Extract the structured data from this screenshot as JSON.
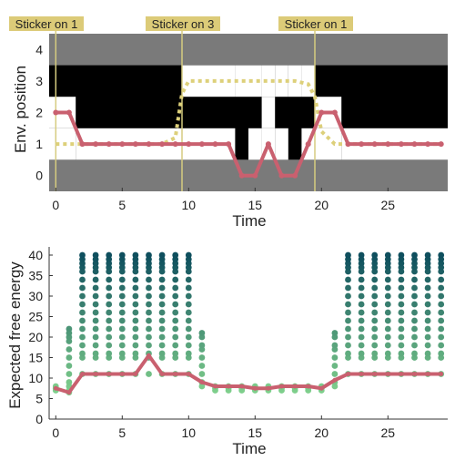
{
  "colors": {
    "env_gray": "#7a7a7a",
    "wall_black": "#000000",
    "free_white": "#ffffff",
    "trajectory": "#c9606f",
    "sticker_path": "#ddd07a",
    "sticker_line": "#d6cc80",
    "sticker_label_bg": "#dccb78",
    "efe_low": "#7fcf8c",
    "efe_high": "#0f4f5e"
  },
  "chart_data": [
    {
      "type": "line",
      "xlabel": "Time",
      "ylabel": "Env. position",
      "xlim": [
        -0.5,
        29.5
      ],
      "ylim": [
        -0.5,
        4.5
      ],
      "x_ticks": [
        0,
        5,
        10,
        15,
        20,
        25
      ],
      "y_ticks": [
        0,
        1,
        2,
        3,
        4
      ],
      "grid": false,
      "annotations": [
        {
          "text": "Sticker on 1",
          "x": 0
        },
        {
          "text": "Sticker on 3",
          "x": 9.5
        },
        {
          "text": "Sticker on 1",
          "x": 19.5
        }
      ],
      "series": [
        {
          "role": "agent-position",
          "x": [
            0,
            1,
            2,
            3,
            4,
            5,
            6,
            7,
            8,
            9,
            10,
            11,
            12,
            13,
            14,
            15,
            16,
            17,
            18,
            19,
            20,
            21,
            22,
            23,
            24,
            25,
            26,
            27,
            28,
            29
          ],
          "values": [
            2,
            2,
            1,
            1,
            1,
            1,
            1,
            1,
            1,
            1,
            1,
            1,
            1,
            1,
            0,
            0,
            1,
            0,
            0,
            1,
            2,
            2,
            1,
            1,
            1,
            1,
            1,
            1,
            1,
            1
          ]
        },
        {
          "role": "sticker-belief",
          "x": [
            0,
            1,
            2,
            3,
            4,
            5,
            6,
            7,
            8,
            9,
            9.5,
            10,
            11,
            12,
            13,
            14,
            15,
            16,
            17,
            18,
            19,
            19.5,
            20,
            21,
            22,
            23,
            24,
            25,
            26,
            27,
            28,
            29
          ],
          "values": [
            1,
            1,
            1,
            1,
            1,
            1,
            1,
            1,
            1,
            1.2,
            2.6,
            3,
            3,
            3,
            3,
            3,
            3,
            3,
            3,
            3,
            2.9,
            2.5,
            1.4,
            1,
            1,
            1,
            1,
            1,
            1,
            1,
            1,
            1
          ]
        }
      ],
      "environment_map": {
        "columns": [
          {
            "x_range": [
              -0.5,
              1.5
            ],
            "free_rows": [
              1,
              2
            ]
          },
          {
            "x_range": [
              1.5,
              9.5
            ],
            "free_rows": [
              1
            ]
          },
          {
            "x_range": [
              9.5,
              13.5
            ],
            "free_rows": [
              1,
              3
            ]
          },
          {
            "x_range": [
              13.5,
              14.5
            ],
            "free_rows": [
              0,
              3
            ]
          },
          {
            "x_range": [
              14.5,
              15.5
            ],
            "free_rows": [
              0,
              1,
              3
            ]
          },
          {
            "x_range": [
              15.5,
              16.5
            ],
            "free_rows": [
              0,
              1,
              2,
              3
            ]
          },
          {
            "x_range": [
              16.5,
              17.5
            ],
            "free_rows": [
              0,
              1,
              3
            ]
          },
          {
            "x_range": [
              17.5,
              18.5
            ],
            "free_rows": [
              0,
              3
            ]
          },
          {
            "x_range": [
              18.5,
              19.5
            ],
            "free_rows": [
              1,
              3
            ]
          },
          {
            "x_range": [
              19.5,
              21.5
            ],
            "free_rows": [
              1,
              2
            ]
          },
          {
            "x_range": [
              21.5,
              29.5
            ],
            "free_rows": [
              1
            ]
          }
        ],
        "boundary_rows": [
          0,
          4
        ]
      }
    },
    {
      "type": "scatter",
      "xlabel": "Time",
      "ylabel": "Expected free energy",
      "xlim": [
        -0.5,
        29.5
      ],
      "ylim": [
        0,
        42
      ],
      "x_ticks": [
        0,
        5,
        10,
        15,
        20,
        25
      ],
      "y_ticks": [
        0,
        5,
        10,
        15,
        20,
        25,
        30,
        35,
        40
      ],
      "grid": false,
      "columns": [
        {
          "x": 0,
          "values": [
            7,
            7.5,
            8
          ]
        },
        {
          "x": 1,
          "values": [
            6.5,
            7,
            8,
            9,
            11,
            13,
            15,
            17,
            19,
            20,
            21,
            22
          ]
        },
        {
          "x": 2,
          "values": [
            11,
            15,
            16,
            18,
            20,
            22,
            24,
            26,
            28,
            30,
            32,
            34,
            36,
            37,
            38,
            39,
            40
          ]
        },
        {
          "x": 3,
          "values": [
            11,
            15,
            16,
            18,
            20,
            22,
            24,
            26,
            28,
            30,
            32,
            34,
            36,
            37,
            38,
            39,
            40
          ]
        },
        {
          "x": 4,
          "values": [
            11,
            15,
            16,
            18,
            20,
            22,
            24,
            26,
            28,
            30,
            32,
            34,
            36,
            37,
            38,
            39,
            40
          ]
        },
        {
          "x": 5,
          "values": [
            11,
            15,
            16,
            18,
            20,
            22,
            24,
            26,
            28,
            30,
            32,
            34,
            36,
            37,
            38,
            39,
            40
          ]
        },
        {
          "x": 6,
          "values": [
            11,
            15,
            16,
            18,
            20,
            22,
            24,
            26,
            28,
            30,
            32,
            34,
            36,
            37,
            38,
            39,
            40
          ]
        },
        {
          "x": 7,
          "values": [
            11,
            15,
            16,
            18,
            20,
            22,
            24,
            26,
            28,
            30,
            32,
            34,
            36,
            37,
            38,
            39,
            40
          ]
        },
        {
          "x": 8,
          "values": [
            11,
            15,
            16,
            18,
            20,
            22,
            24,
            26,
            28,
            30,
            32,
            34,
            36,
            37,
            38,
            39,
            40
          ]
        },
        {
          "x": 9,
          "values": [
            11,
            15,
            16,
            18,
            20,
            22,
            24,
            26,
            28,
            30,
            32,
            34,
            36,
            37,
            38,
            39,
            40
          ]
        },
        {
          "x": 10,
          "values": [
            11,
            15,
            16,
            18,
            20,
            22,
            24,
            26,
            28,
            30,
            32,
            34,
            36,
            37,
            38,
            39,
            40
          ]
        },
        {
          "x": 11,
          "values": [
            8,
            9,
            11,
            13,
            15,
            17,
            18,
            20,
            21
          ]
        },
        {
          "x": 12,
          "values": [
            7,
            7.5,
            8
          ]
        },
        {
          "x": 13,
          "values": [
            7,
            7.5,
            8
          ]
        },
        {
          "x": 14,
          "values": [
            7,
            7.5,
            8
          ]
        },
        {
          "x": 15,
          "values": [
            7,
            7.5,
            8
          ]
        },
        {
          "x": 16,
          "values": [
            7,
            7.5,
            8
          ]
        },
        {
          "x": 17,
          "values": [
            7,
            7.5,
            8
          ]
        },
        {
          "x": 18,
          "values": [
            7,
            7.5,
            8
          ]
        },
        {
          "x": 19,
          "values": [
            7,
            7.5,
            8
          ]
        },
        {
          "x": 20,
          "values": [
            7,
            7.5,
            8
          ]
        },
        {
          "x": 21,
          "values": [
            8,
            9,
            11,
            13,
            15,
            17,
            18,
            20,
            21
          ]
        },
        {
          "x": 22,
          "values": [
            11,
            15,
            16,
            18,
            20,
            22,
            24,
            26,
            28,
            30,
            32,
            34,
            36,
            37,
            38,
            39,
            40
          ]
        },
        {
          "x": 23,
          "values": [
            11,
            15,
            16,
            18,
            20,
            22,
            24,
            26,
            28,
            30,
            32,
            34,
            36,
            37,
            38,
            39,
            40
          ]
        },
        {
          "x": 24,
          "values": [
            11,
            15,
            16,
            18,
            20,
            22,
            24,
            26,
            28,
            30,
            32,
            34,
            36,
            37,
            38,
            39,
            40
          ]
        },
        {
          "x": 25,
          "values": [
            11,
            15,
            16,
            18,
            20,
            22,
            24,
            26,
            28,
            30,
            32,
            34,
            36,
            37,
            38,
            39,
            40
          ]
        },
        {
          "x": 26,
          "values": [
            11,
            15,
            16,
            18,
            20,
            22,
            24,
            26,
            28,
            30,
            32,
            34,
            36,
            37,
            38,
            39,
            40
          ]
        },
        {
          "x": 27,
          "values": [
            11,
            15,
            16,
            18,
            20,
            22,
            24,
            26,
            28,
            30,
            32,
            34,
            36,
            37,
            38,
            39,
            40
          ]
        },
        {
          "x": 28,
          "values": [
            11,
            15,
            16,
            18,
            20,
            22,
            24,
            26,
            28,
            30,
            32,
            34,
            36,
            37,
            38,
            39,
            40
          ]
        },
        {
          "x": 29,
          "values": [
            11,
            15,
            16,
            18,
            20,
            22,
            24,
            26,
            28,
            30,
            32,
            34,
            36,
            37,
            38,
            39,
            40
          ]
        }
      ],
      "line": {
        "role": "chosen-action",
        "x": [
          0,
          1,
          2,
          3,
          4,
          5,
          6,
          7,
          8,
          9,
          10,
          11,
          12,
          13,
          14,
          15,
          16,
          17,
          18,
          19,
          20,
          21,
          22,
          23,
          24,
          25,
          26,
          27,
          28,
          29
        ],
        "values": [
          7.5,
          6.5,
          11,
          11,
          11,
          11,
          11,
          15.5,
          11,
          11,
          11,
          9,
          8,
          8,
          8,
          7.5,
          7.5,
          8,
          8,
          8,
          7.5,
          9.5,
          11,
          11,
          11,
          11,
          11,
          11,
          11,
          11
        ]
      }
    }
  ]
}
